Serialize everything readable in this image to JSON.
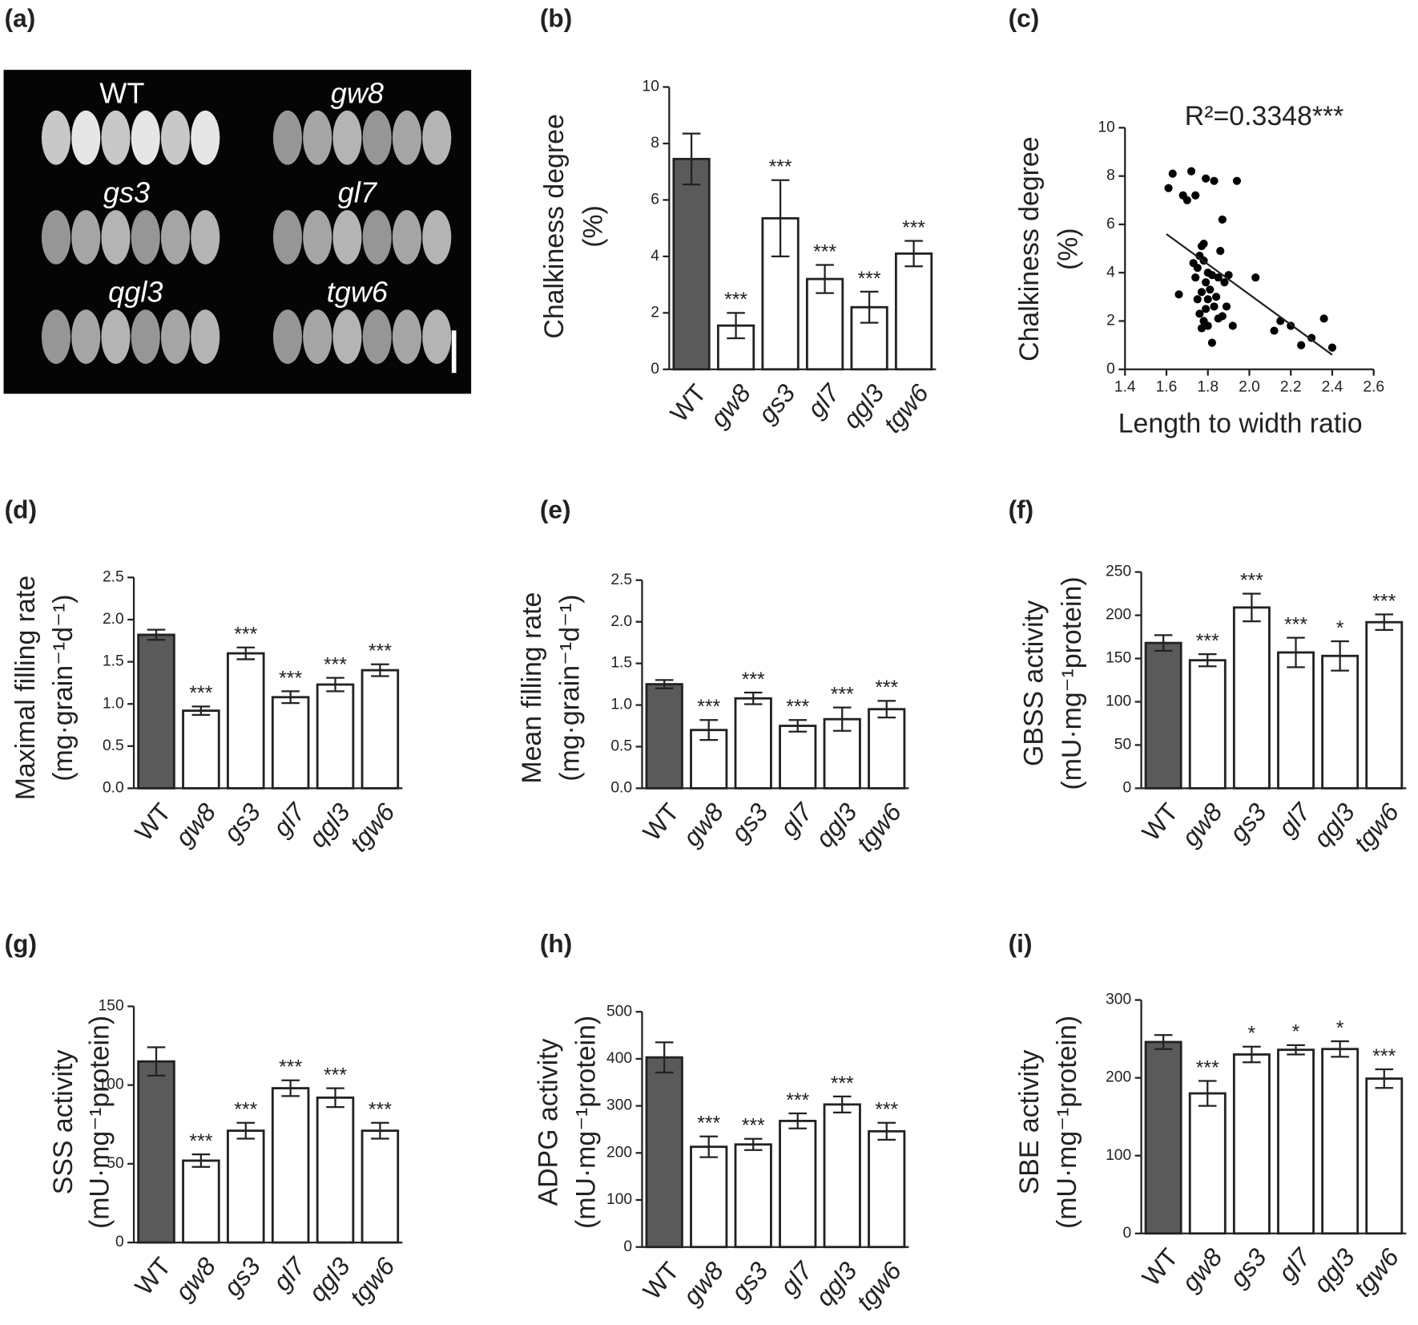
{
  "image_panel": {
    "label": "(a)",
    "groups": [
      "WT",
      "gw8",
      "gs3",
      "gl7",
      "qgl3",
      "tgw6"
    ]
  },
  "chart_data": [
    {
      "type": "bar",
      "label": "(b)",
      "ylabel": [
        "Chalkiness degree",
        "(%)"
      ],
      "categories": [
        "WT",
        "gw8",
        "gs3",
        "gl7",
        "qgl3",
        "tgw6"
      ],
      "values": [
        7.45,
        1.55,
        5.35,
        3.2,
        2.2,
        4.1
      ],
      "errors": [
        0.9,
        0.45,
        1.35,
        0.5,
        0.55,
        0.45
      ],
      "significance": [
        null,
        "***",
        "***",
        "***",
        "***",
        "***"
      ],
      "colors": [
        "#5a5a5a",
        "#ffffff",
        "#ffffff",
        "#ffffff",
        "#ffffff",
        "#ffffff"
      ],
      "ylim": [
        0,
        10
      ],
      "yticks": [
        0,
        2,
        4,
        6,
        8,
        10
      ]
    },
    {
      "type": "scatter",
      "label": "(c)",
      "ylabel": [
        "Chalkiness degree",
        "(%)"
      ],
      "xlabel": "Length to width ratio",
      "annotation": "R²=0.3348***",
      "x": [
        1.61,
        1.63,
        1.68,
        1.7,
        1.72,
        1.74,
        1.79,
        1.83,
        1.94,
        1.87,
        1.77,
        1.78,
        1.76,
        1.75,
        1.78,
        1.8,
        1.74,
        1.79,
        1.82,
        1.85,
        1.88,
        1.81,
        1.77,
        1.66,
        1.75,
        1.8,
        1.84,
        1.79,
        1.76,
        1.83,
        1.78,
        1.8,
        1.77,
        1.85,
        1.92,
        1.89,
        1.82,
        2.03,
        2.12,
        2.15,
        2.2,
        2.25,
        2.3,
        2.36,
        2.4,
        1.87,
        1.73,
        1.86,
        1.9
      ],
      "y": [
        7.5,
        8.1,
        7.2,
        7.0,
        8.2,
        7.2,
        7.9,
        7.8,
        7.8,
        6.2,
        5.1,
        5.2,
        4.7,
        4.2,
        4.5,
        4.0,
        3.8,
        3.6,
        3.9,
        3.8,
        3.6,
        3.3,
        3.2,
        3.1,
        2.9,
        2.9,
        3.0,
        2.5,
        2.3,
        2.6,
        2.0,
        1.8,
        1.7,
        2.1,
        1.8,
        2.6,
        1.1,
        3.8,
        1.6,
        2.0,
        1.8,
        1.0,
        1.3,
        2.1,
        0.9,
        2.2,
        4.4,
        4.9,
        3.9
      ],
      "color": "#000000",
      "trend_line": {
        "x": [
          1.6,
          2.4
        ],
        "y": [
          5.6,
          0.6
        ]
      },
      "xlim": [
        1.4,
        2.6
      ],
      "xticks": [
        1.4,
        1.6,
        1.8,
        {
          "value": 2.0,
          "label": "2.0"
        },
        2.2,
        2.4,
        2.6
      ],
      "ylim": [
        0,
        10
      ],
      "yticks": [
        0,
        2,
        4,
        6,
        8,
        10
      ]
    },
    {
      "type": "bar",
      "label": "(d)",
      "ylabel": [
        "Maximal filling rate",
        "(mg·grain⁻¹d⁻¹)"
      ],
      "categories": [
        "WT",
        "gw8",
        "gs3",
        "gl7",
        "qgl3",
        "tgw6"
      ],
      "values": [
        1.82,
        0.92,
        1.6,
        1.08,
        1.23,
        1.4
      ],
      "errors": [
        0.06,
        0.05,
        0.07,
        0.07,
        0.08,
        0.07
      ],
      "significance": [
        null,
        "***",
        "***",
        "***",
        "***",
        "***"
      ],
      "colors": [
        "#5a5a5a",
        "#ffffff",
        "#ffffff",
        "#ffffff",
        "#ffffff",
        "#ffffff"
      ],
      "ylim": [
        0,
        2.5
      ],
      "yticks": [
        {
          "value": 0,
          "label": "0.0"
        },
        0.5,
        {
          "value": 1,
          "label": "1.0"
        },
        1.5,
        {
          "value": 2,
          "label": "2.0"
        },
        2.5
      ]
    },
    {
      "type": "bar",
      "label": "(e)",
      "ylabel": [
        "Mean filling rate",
        "(mg·grain⁻¹d⁻¹)"
      ],
      "categories": [
        "WT",
        "gw8",
        "gs3",
        "gl7",
        "qgl3",
        "tgw6"
      ],
      "values": [
        1.25,
        0.7,
        1.08,
        0.75,
        0.83,
        0.95
      ],
      "errors": [
        0.05,
        0.12,
        0.07,
        0.07,
        0.14,
        0.1
      ],
      "significance": [
        null,
        "***",
        "***",
        "***",
        "***",
        "***"
      ],
      "colors": [
        "#5a5a5a",
        "#ffffff",
        "#ffffff",
        "#ffffff",
        "#ffffff",
        "#ffffff"
      ],
      "ylim": [
        0,
        2.5
      ],
      "yticks": [
        {
          "value": 0,
          "label": "0.0"
        },
        0.5,
        {
          "value": 1,
          "label": "1.0"
        },
        1.5,
        {
          "value": 2,
          "label": "2.0"
        },
        2.5
      ]
    },
    {
      "type": "bar",
      "label": "(f)",
      "ylabel": [
        "GBSS  activity",
        "(mU·mg⁻¹protein)"
      ],
      "categories": [
        "WT",
        "gw8",
        "gs3",
        "gl7",
        "qgl3",
        "tgw6"
      ],
      "values": [
        168,
        148,
        209,
        157,
        153,
        192
      ],
      "errors": [
        9,
        7,
        16,
        17,
        17,
        9
      ],
      "significance": [
        null,
        "***",
        "***",
        "***",
        "*",
        "***"
      ],
      "colors": [
        "#5a5a5a",
        "#ffffff",
        "#ffffff",
        "#ffffff",
        "#ffffff",
        "#ffffff"
      ],
      "ylim": [
        0,
        250
      ],
      "yticks": [
        0,
        50,
        100,
        150,
        200,
        250
      ]
    },
    {
      "type": "bar",
      "label": "(g)",
      "ylabel": [
        "SSS  activity",
        "(mU·mg⁻¹protein)"
      ],
      "categories": [
        "WT",
        "gw8",
        "gs3",
        "gl7",
        "qgl3",
        "tgw6"
      ],
      "values": [
        115,
        52,
        71,
        98,
        92,
        71
      ],
      "errors": [
        9,
        4,
        5,
        5,
        6,
        5
      ],
      "significance": [
        null,
        "***",
        "***",
        "***",
        "***",
        "***"
      ],
      "colors": [
        "#5a5a5a",
        "#ffffff",
        "#ffffff",
        "#ffffff",
        "#ffffff",
        "#ffffff"
      ],
      "ylim": [
        0,
        150
      ],
      "yticks": [
        0,
        50,
        100,
        150
      ]
    },
    {
      "type": "bar",
      "label": "(h)",
      "ylabel": [
        "ADPG  activity",
        "(mU·mg⁻¹protein)"
      ],
      "categories": [
        "WT",
        "gw8",
        "gs3",
        "gl7",
        "qgl3",
        "tgw6"
      ],
      "values": [
        403,
        213,
        218,
        268,
        303,
        246
      ],
      "errors": [
        32,
        22,
        12,
        16,
        17,
        18
      ],
      "significance": [
        null,
        "***",
        "***",
        "***",
        "***",
        "***"
      ],
      "colors": [
        "#5a5a5a",
        "#ffffff",
        "#ffffff",
        "#ffffff",
        "#ffffff",
        "#ffffff"
      ],
      "ylim": [
        0,
        500
      ],
      "yticks": [
        0,
        100,
        200,
        300,
        400,
        500
      ]
    },
    {
      "type": "bar",
      "label": "(i)",
      "ylabel": [
        "SBE  activity",
        "(mU·mg⁻¹protein)"
      ],
      "categories": [
        "WT",
        "gw8",
        "gs3",
        "gl7",
        "qgl3",
        "tgw6"
      ],
      "values": [
        246,
        180,
        230,
        236,
        237,
        199
      ],
      "errors": [
        9,
        16,
        10,
        6,
        10,
        12
      ],
      "significance": [
        null,
        "***",
        "*",
        "*",
        "*",
        "***"
      ],
      "colors": [
        "#5a5a5a",
        "#ffffff",
        "#ffffff",
        "#ffffff",
        "#ffffff",
        "#ffffff"
      ],
      "ylim": [
        0,
        300
      ],
      "yticks": [
        0,
        100,
        200,
        300
      ]
    }
  ]
}
